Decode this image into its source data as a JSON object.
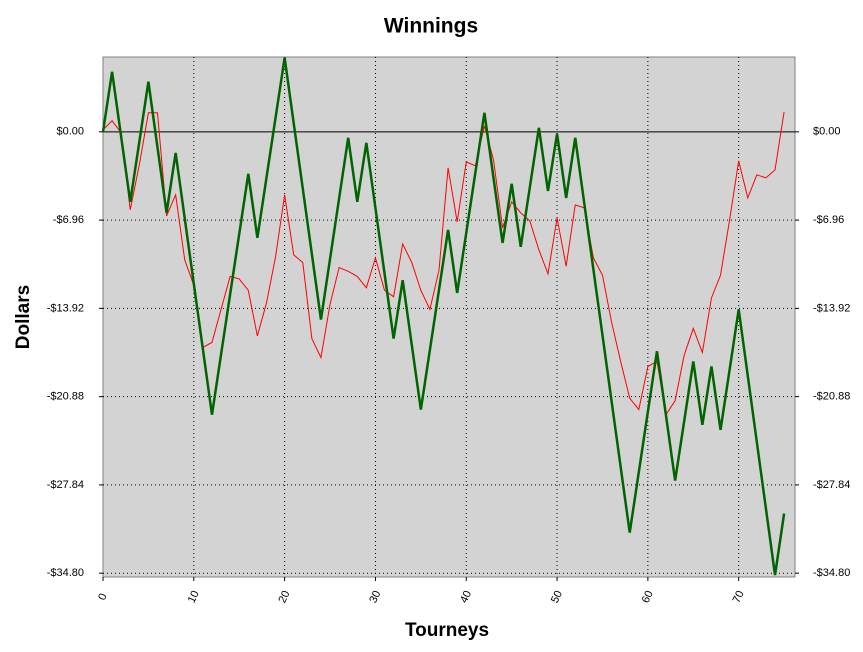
{
  "chart_data": {
    "type": "line",
    "title": "Winnings",
    "xlabel": "Tourneys",
    "ylabel": "Dollars",
    "xlim": [
      0,
      76.2
    ],
    "xticks": [
      0,
      10,
      20,
      30,
      40,
      50,
      60,
      70
    ],
    "ylim": [
      -35.1,
      5.9
    ],
    "yticks": [
      {
        "value": 0,
        "label": "$0.00"
      },
      {
        "value": -6.96,
        "label": "-$6.96"
      },
      {
        "value": -13.92,
        "label": "-$13.92"
      },
      {
        "value": -20.88,
        "label": "-$20.88"
      },
      {
        "value": -27.84,
        "label": "-$27.84"
      },
      {
        "value": -34.8,
        "label": "-$34.80"
      }
    ],
    "grid": true,
    "series": [
      {
        "color": "#ff0000",
        "width": 1,
        "x": [
          0,
          1,
          2,
          3,
          4,
          5,
          6,
          7,
          8,
          9,
          10,
          11,
          12,
          13,
          14,
          15,
          16,
          17,
          18,
          19,
          20,
          21,
          22,
          23,
          24,
          25,
          26,
          27,
          28,
          29,
          30,
          31,
          32,
          33,
          34,
          35,
          36,
          37,
          38,
          39,
          40,
          41,
          42,
          43,
          44,
          45,
          46,
          47,
          48,
          49,
          50,
          51,
          52,
          53,
          54,
          55,
          56,
          57,
          58,
          59,
          60,
          61,
          62,
          63,
          64,
          65,
          66,
          67,
          68,
          69,
          70,
          71,
          72,
          73,
          74,
          75
        ],
        "values": [
          0.16,
          0.87,
          -0.08,
          -6.15,
          -2.6,
          1.5,
          1.5,
          -6.63,
          -4.97,
          -10.1,
          -12.1,
          -17.0,
          -16.6,
          -14.0,
          -11.4,
          -11.6,
          -12.5,
          -16.1,
          -13.5,
          -9.86,
          -4.97,
          -9.7,
          -10.3,
          -16.3,
          -17.8,
          -13.6,
          -10.7,
          -11.0,
          -11.4,
          -12.3,
          -9.94,
          -12.5,
          -13.0,
          -8.84,
          -10.3,
          -12.5,
          -14.0,
          -10.9,
          -2.84,
          -7.1,
          -2.37,
          -2.68,
          0.47,
          -2.21,
          -7.57,
          -5.52,
          -6.39,
          -7.02,
          -9.31,
          -11.2,
          -6.79,
          -10.6,
          -5.76,
          -6.0,
          -9.94,
          -11.3,
          -15.0,
          -18.1,
          -21.0,
          -21.9,
          -18.5,
          -18.1,
          -22.3,
          -21.2,
          -17.6,
          -15.5,
          -17.4,
          -13.1,
          -11.3,
          -6.94,
          -2.29,
          -5.21,
          -3.39,
          -3.63,
          -3.0,
          1.58
        ]
      },
      {
        "color": "#006400",
        "width": 2.5,
        "x": [
          0,
          1,
          3,
          5,
          7,
          8,
          12,
          16,
          17,
          20,
          24,
          27,
          28,
          29,
          32,
          33,
          35,
          38,
          39,
          42,
          44,
          45,
          46,
          48,
          49,
          50,
          51,
          52,
          58,
          61,
          63,
          65,
          66,
          67,
          68,
          70,
          74,
          75
        ],
        "values": [
          0,
          4.73,
          -5.52,
          3.95,
          -6.39,
          -1.66,
          -22.3,
          -3.31,
          -8.36,
          5.84,
          -14.8,
          -0.47,
          -5.52,
          -0.87,
          -16.3,
          -11.7,
          -21.9,
          -7.73,
          -12.7,
          1.5,
          -8.76,
          -4.1,
          -9.07,
          0.32,
          -4.66,
          -0.16,
          -5.21,
          -0.47,
          -31.6,
          -17.3,
          -27.5,
          -18.1,
          -23.1,
          -18.5,
          -23.5,
          -14.0,
          -34.95,
          -30.1
        ]
      }
    ]
  }
}
